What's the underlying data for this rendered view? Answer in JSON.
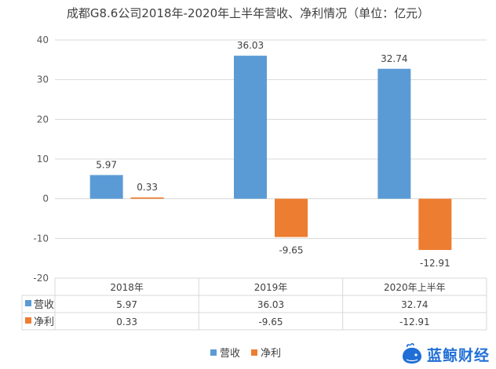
{
  "chart_data": {
    "type": "bar",
    "title": "成都G8.6公司2018年-2020年上半年营收、净利情况（单位：亿元）",
    "categories": [
      "2018年",
      "2019年",
      "2020年上半年"
    ],
    "series": [
      {
        "name": "营收",
        "values": [
          5.97,
          36.03,
          32.74
        ],
        "labels": [
          "5.97",
          "36.03",
          "32.74"
        ],
        "color": "#5b9bd5"
      },
      {
        "name": "净利",
        "values": [
          0.33,
          -9.65,
          -12.91
        ],
        "labels": [
          "0.33",
          "-9.65",
          "-12.91"
        ],
        "color": "#ed7d31"
      }
    ],
    "ylim": [
      -20,
      40
    ],
    "yticks": [
      40,
      30,
      20,
      10,
      0,
      -10,
      -20
    ],
    "data_table": true,
    "legend": "bottom-center"
  },
  "watermark": {
    "text": "蓝鲸财经",
    "icon": "whale-icon",
    "color": "#1f6fd6"
  }
}
